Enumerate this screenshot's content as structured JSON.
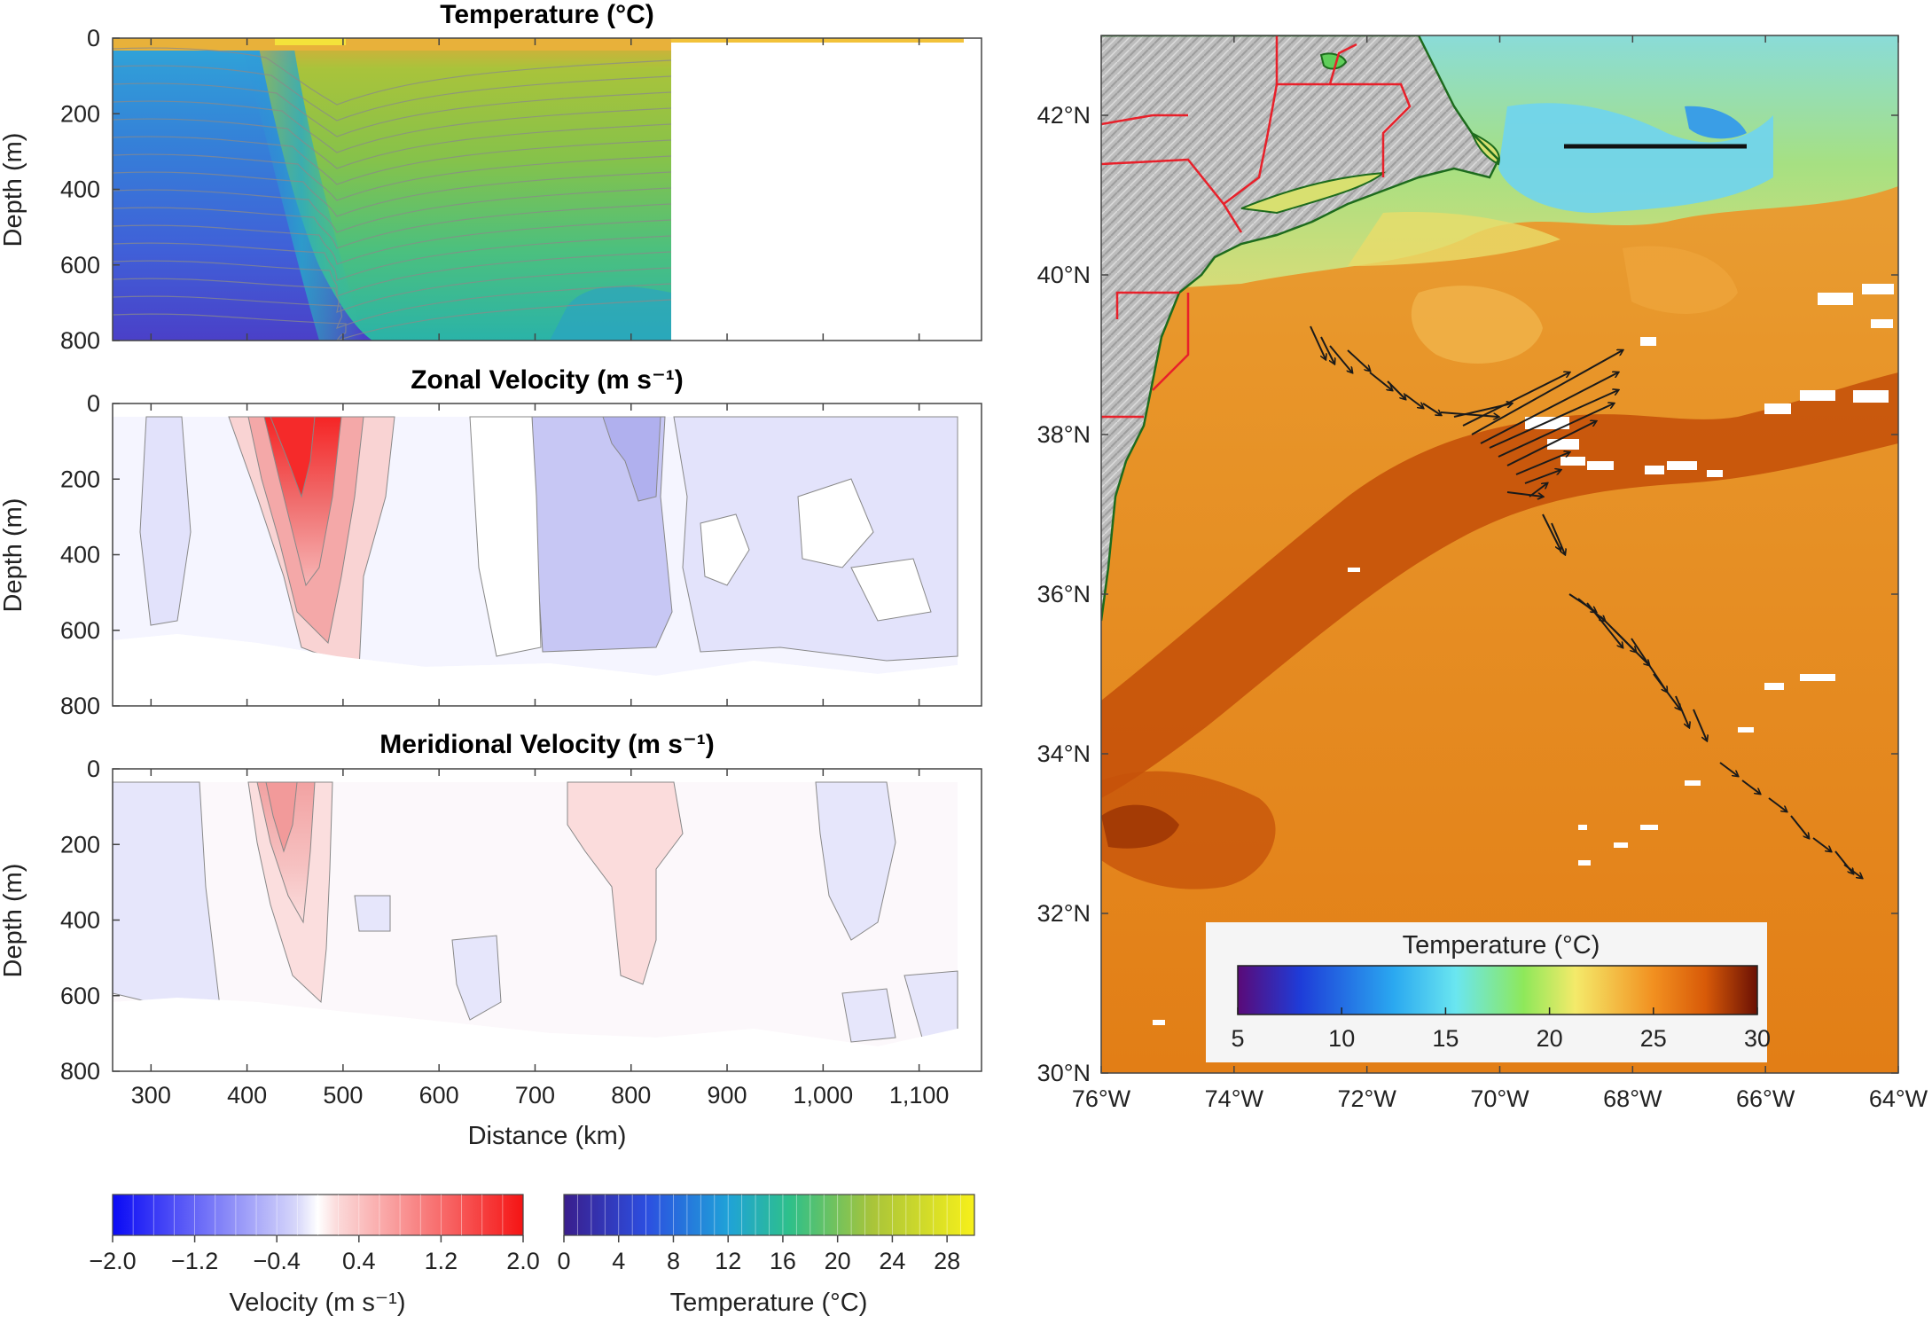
{
  "figure": {
    "chart_data": [
      {
        "type": "heatmap",
        "panel": "temperature-section",
        "title": "Temperature (°C)",
        "xlabel": "",
        "ylabel": "Depth (m)",
        "ylim": [
          800,
          0
        ],
        "xlim": [
          260,
          1165
        ],
        "y_ticks": [
          "0",
          "200",
          "400",
          "600",
          "800"
        ],
        "z_unit": "°C",
        "data_extent_km": [
          260,
          850
        ],
        "profiles": {
          "depth": [
            0,
            100,
            200,
            300,
            400,
            500,
            600,
            700,
            800
          ],
          "shelf_slope_360km": [
            24,
            15,
            12,
            10,
            8,
            7,
            6,
            5,
            4.5
          ],
          "sargasso_700km": [
            25,
            20,
            19,
            18,
            18,
            17,
            16,
            14,
            12
          ]
        }
      },
      {
        "type": "heatmap",
        "panel": "zonal-velocity-section",
        "title": "Zonal Velocity (m s⁻¹)",
        "xlabel": "",
        "ylabel": "Depth (m)",
        "ylim": [
          800,
          0
        ],
        "xlim": [
          260,
          1165
        ],
        "y_ticks": [
          "0",
          "200",
          "400",
          "600",
          "800"
        ],
        "z_unit": "m s⁻¹",
        "jet_core": {
          "distance_km": 460,
          "depth_m": 150,
          "max_speed": 1.8
        }
      },
      {
        "type": "heatmap",
        "panel": "meridional-velocity-section",
        "title": "Meridional Velocity (m s⁻¹)",
        "xlabel": "Distance (km)",
        "ylabel": "Depth (m)",
        "ylim": [
          800,
          0
        ],
        "xlim": [
          260,
          1165
        ],
        "x_ticks": [
          "300",
          "400",
          "500",
          "600",
          "700",
          "800",
          "900",
          "1,000",
          "1,100"
        ],
        "y_ticks": [
          "0",
          "200",
          "400",
          "600",
          "800"
        ],
        "z_unit": "m s⁻¹",
        "jet_core": {
          "distance_km": 450,
          "depth_m": 150,
          "max_speed": 1.0
        }
      },
      {
        "type": "heatmap",
        "panel": "sea-surface-temperature-map",
        "title": "",
        "x_ticks": [
          "76°W",
          "74°W",
          "72°W",
          "70°W",
          "68°W",
          "66°W",
          "64°W"
        ],
        "y_ticks": [
          "30°N",
          "32°N",
          "34°N",
          "36°N",
          "38°N",
          "40°N",
          "42°N"
        ],
        "xlim": [
          -76,
          -64
        ],
        "ylim": [
          30,
          43
        ],
        "colorbar": {
          "label": "Temperature (°C)",
          "min": 5,
          "max": 30,
          "ticks": [
            "5",
            "10",
            "15",
            "20",
            "25",
            "30"
          ]
        },
        "legend": "bottom-center"
      }
    ],
    "colorbars": {
      "velocity": {
        "label": "Velocity (m s⁻¹)",
        "min": -2.0,
        "max": 2.0,
        "ticks": [
          "−2.0",
          "−1.2",
          "−0.4",
          "0.4",
          "1.2",
          "2.0"
        ]
      },
      "temperature": {
        "label": "Temperature (°C)",
        "min": 0,
        "max": 30,
        "ticks": [
          "0",
          "4",
          "8",
          "12",
          "16",
          "20",
          "24",
          "28"
        ]
      }
    },
    "colors": {
      "land": "#b8b8b8",
      "borders": "#e8202a",
      "arrows": "#1a1a1a",
      "positive_velocity": "#f22a2a",
      "negative_velocity": "#2a3df2"
    }
  }
}
